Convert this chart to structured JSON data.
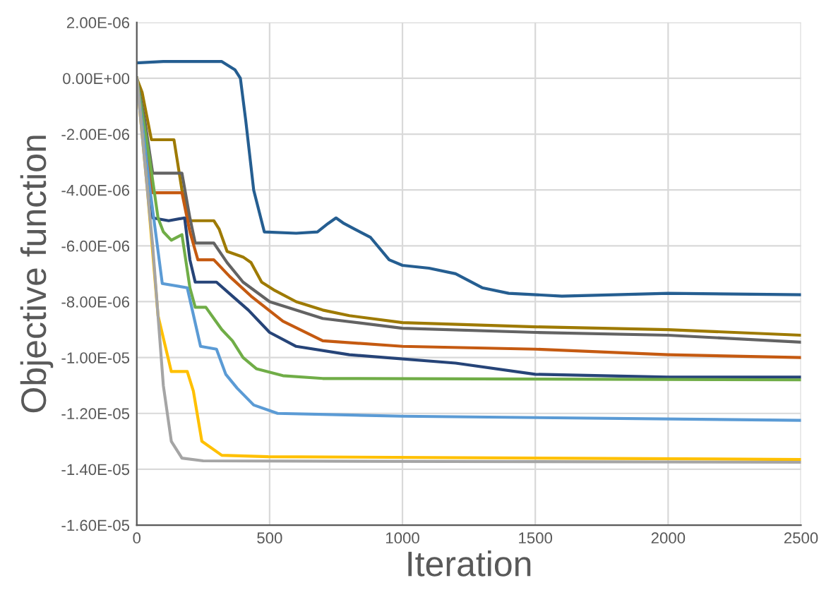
{
  "chart_data": {
    "type": "line",
    "xlabel": "Iteration",
    "ylabel": "Objective function",
    "xlim": [
      0,
      2500
    ],
    "xticks": [
      0,
      500,
      1000,
      1500,
      2000,
      2500
    ],
    "ylim": [
      -1.6e-05,
      2e-06
    ],
    "yticks": [
      {
        "value": 2e-06,
        "label": "2.00E-06"
      },
      {
        "value": 0,
        "label": "0.00E+00"
      },
      {
        "value": -2e-06,
        "label": "-2.00E-06"
      },
      {
        "value": -4e-06,
        "label": "-4.00E-06"
      },
      {
        "value": -6e-06,
        "label": "-6.00E-06"
      },
      {
        "value": -8e-06,
        "label": "-8.00E-06"
      },
      {
        "value": -1e-05,
        "label": "-1.00E-05"
      },
      {
        "value": -1.2e-05,
        "label": "-1.20E-05"
      },
      {
        "value": -1.4e-05,
        "label": "-1.40E-05"
      },
      {
        "value": -1.6e-05,
        "label": "-1.60E-05"
      }
    ],
    "grid": true,
    "marker": "none",
    "line_style": "solid",
    "series": [
      {
        "color": "#255e91",
        "x": [
          0,
          100,
          320,
          370,
          390,
          410,
          440,
          480,
          600,
          680,
          720,
          750,
          780,
          820,
          880,
          950,
          1000,
          1100,
          1200,
          1300,
          1400,
          1600,
          2000,
          2500
        ],
        "values": [
          5.5e-07,
          6e-07,
          6e-07,
          3e-07,
          0,
          -1.5e-06,
          -4e-06,
          -5.5e-06,
          -5.55e-06,
          -5.5e-06,
          -5.2e-06,
          -5e-06,
          -5.2e-06,
          -5.4e-06,
          -5.7e-06,
          -6.5e-06,
          -6.7e-06,
          -6.8e-06,
          -7e-06,
          -7.5e-06,
          -7.7e-06,
          -7.8e-06,
          -7.7e-06,
          -7.75e-06
        ]
      },
      {
        "color": "#9e7a00",
        "x": [
          0,
          20,
          55,
          140,
          170,
          200,
          290,
          310,
          340,
          400,
          430,
          470,
          520,
          600,
          700,
          800,
          1000,
          1500,
          2000,
          2500
        ],
        "values": [
          0,
          -5e-07,
          -2.2e-06,
          -2.2e-06,
          -4e-06,
          -5.1e-06,
          -5.1e-06,
          -5.4e-06,
          -6.2e-06,
          -6.4e-06,
          -6.6e-06,
          -7.3e-06,
          -7.6e-06,
          -8e-06,
          -8.3e-06,
          -8.5e-06,
          -8.75e-06,
          -8.9e-06,
          -9e-06,
          -9.2e-06
        ]
      },
      {
        "color": "#636363",
        "x": [
          0,
          30,
          60,
          170,
          200,
          220,
          290,
          340,
          400,
          500,
          700,
          1000,
          1500,
          2000,
          2500
        ],
        "values": [
          0,
          -1.5e-06,
          -3.4e-06,
          -3.4e-06,
          -5e-06,
          -5.9e-06,
          -5.9e-06,
          -6.6e-06,
          -7.3e-06,
          -8e-06,
          -8.6e-06,
          -8.95e-06,
          -9.1e-06,
          -9.2e-06,
          -9.45e-06
        ]
      },
      {
        "color": "#c55a11",
        "x": [
          0,
          30,
          60,
          170,
          200,
          230,
          290,
          350,
          430,
          550,
          700,
          1000,
          1500,
          2000,
          2500
        ],
        "values": [
          0,
          -2e-06,
          -4.1e-06,
          -4.1e-06,
          -5.5e-06,
          -6.5e-06,
          -6.5e-06,
          -7.1e-06,
          -7.8e-06,
          -8.7e-06,
          -9.4e-06,
          -9.6e-06,
          -9.7e-06,
          -9.9e-06,
          -1e-05
        ]
      },
      {
        "color": "#264478",
        "x": [
          0,
          30,
          60,
          120,
          180,
          200,
          220,
          300,
          360,
          420,
          500,
          600,
          800,
          1200,
          1500,
          2000,
          2500
        ],
        "values": [
          0,
          -2.5e-06,
          -5e-06,
          -5.1e-06,
          -5e-06,
          -6.5e-06,
          -7.3e-06,
          -7.3e-06,
          -7.8e-06,
          -8.3e-06,
          -9.1e-06,
          -9.6e-06,
          -9.9e-06,
          -1.02e-05,
          -1.06e-05,
          -1.07e-05,
          -1.07e-05
        ]
      },
      {
        "color": "#70ad47",
        "x": [
          0,
          50,
          80,
          100,
          130,
          170,
          200,
          220,
          260,
          290,
          320,
          360,
          400,
          450,
          550,
          700,
          2500
        ],
        "values": [
          0,
          -3e-06,
          -5e-06,
          -5.5e-06,
          -5.8e-06,
          -5.6e-06,
          -7.5e-06,
          -8.2e-06,
          -8.2e-06,
          -8.6e-06,
          -9e-06,
          -9.4e-06,
          -1e-05,
          -1.04e-05,
          -1.065e-05,
          -1.075e-05,
          -1.08e-05
        ]
      },
      {
        "color": "#5b9bd5",
        "x": [
          0,
          50,
          96,
          190,
          240,
          300,
          335,
          378,
          440,
          530,
          1000,
          2500
        ],
        "values": [
          0,
          -4e-06,
          -7.35e-06,
          -7.5e-06,
          -9.6e-06,
          -9.7e-06,
          -1.06e-05,
          -1.11e-05,
          -1.17e-05,
          -1.2e-05,
          -1.21e-05,
          -1.225e-05
        ]
      },
      {
        "color": "#ffc000",
        "x": [
          0,
          40,
          80,
          130,
          190,
          213,
          245,
          320,
          495,
          2500
        ],
        "values": [
          0,
          -4e-06,
          -8.5e-06,
          -1.05e-05,
          -1.05e-05,
          -1.12e-05,
          -1.3e-05,
          -1.35e-05,
          -1.355e-05,
          -1.365e-05
        ]
      },
      {
        "color": "#a5a5a5",
        "x": [
          0,
          60,
          100,
          130,
          170,
          250,
          2500
        ],
        "values": [
          0,
          -6e-06,
          -1.1e-05,
          -1.3e-05,
          -1.36e-05,
          -1.37e-05,
          -1.375e-05
        ]
      }
    ]
  }
}
